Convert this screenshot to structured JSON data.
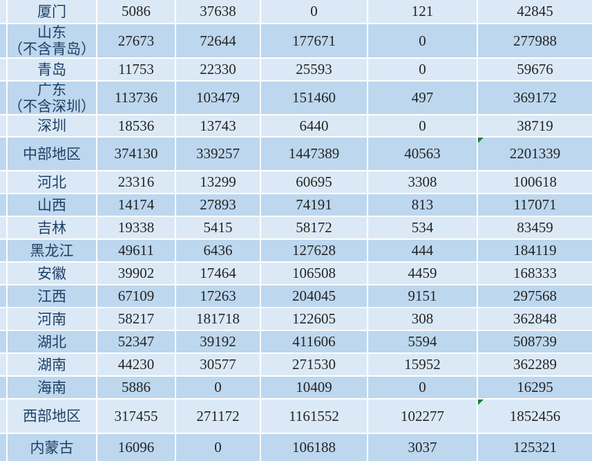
{
  "table": {
    "colors": {
      "row_light": "#dbe9f6",
      "row_dark": "#bdd7ee",
      "gridline": "#ffffff",
      "label_text": "#1e4066",
      "value_text": "#242424",
      "error_indicator": "#1f7a3d"
    },
    "rows": [
      {
        "label_lines": [
          "厦门"
        ],
        "values": [
          "5086",
          "37638",
          "0",
          "121",
          "42845"
        ],
        "shade": "light"
      },
      {
        "label_lines": [
          "山东",
          "（不含青岛）"
        ],
        "values": [
          "27673",
          "72644",
          "177671",
          "0",
          "277988"
        ],
        "shade": "dark"
      },
      {
        "label_lines": [
          "青岛"
        ],
        "values": [
          "11753",
          "22330",
          "25593",
          "0",
          "59676"
        ],
        "shade": "light"
      },
      {
        "label_lines": [
          "广东",
          "（不含深圳）"
        ],
        "values": [
          "113736",
          "103479",
          "151460",
          "497",
          "369172"
        ],
        "shade": "dark"
      },
      {
        "label_lines": [
          "深圳"
        ],
        "values": [
          "18536",
          "13743",
          "6440",
          "0",
          "38719"
        ],
        "shade": "light"
      },
      {
        "label_lines": [
          "中部地区"
        ],
        "values": [
          "374130",
          "339257",
          "1447389",
          "40563",
          "2201339"
        ],
        "shade": "dark",
        "error_marker_col": 4
      },
      {
        "label_lines": [
          "河北"
        ],
        "values": [
          "23316",
          "13299",
          "60695",
          "3308",
          "100618"
        ],
        "shade": "light"
      },
      {
        "label_lines": [
          "山西"
        ],
        "values": [
          "14174",
          "27893",
          "74191",
          "813",
          "117071"
        ],
        "shade": "dark"
      },
      {
        "label_lines": [
          "吉林"
        ],
        "values": [
          "19338",
          "5415",
          "58172",
          "534",
          "83459"
        ],
        "shade": "light"
      },
      {
        "label_lines": [
          "黑龙江"
        ],
        "values": [
          "49611",
          "6436",
          "127628",
          "444",
          "184119"
        ],
        "shade": "dark"
      },
      {
        "label_lines": [
          "安徽"
        ],
        "values": [
          "39902",
          "17464",
          "106508",
          "4459",
          "168333"
        ],
        "shade": "light"
      },
      {
        "label_lines": [
          "江西"
        ],
        "values": [
          "67109",
          "17263",
          "204045",
          "9151",
          "297568"
        ],
        "shade": "dark"
      },
      {
        "label_lines": [
          "河南"
        ],
        "values": [
          "58217",
          "181718",
          "122605",
          "308",
          "362848"
        ],
        "shade": "light"
      },
      {
        "label_lines": [
          "湖北"
        ],
        "values": [
          "52347",
          "39192",
          "411606",
          "5594",
          "508739"
        ],
        "shade": "dark"
      },
      {
        "label_lines": [
          "湖南"
        ],
        "values": [
          "44230",
          "30577",
          "271530",
          "15952",
          "362289"
        ],
        "shade": "light"
      },
      {
        "label_lines": [
          "海南"
        ],
        "values": [
          "5886",
          "0",
          "10409",
          "0",
          "16295"
        ],
        "shade": "dark"
      },
      {
        "label_lines": [
          "西部地区"
        ],
        "values": [
          "317455",
          "271172",
          "1161552",
          "102277",
          "1852456"
        ],
        "shade": "light",
        "error_marker_col": 4
      },
      {
        "label_lines": [
          "内蒙古"
        ],
        "values": [
          "16096",
          "0",
          "106188",
          "3037",
          "125321"
        ],
        "shade": "dark"
      }
    ]
  }
}
